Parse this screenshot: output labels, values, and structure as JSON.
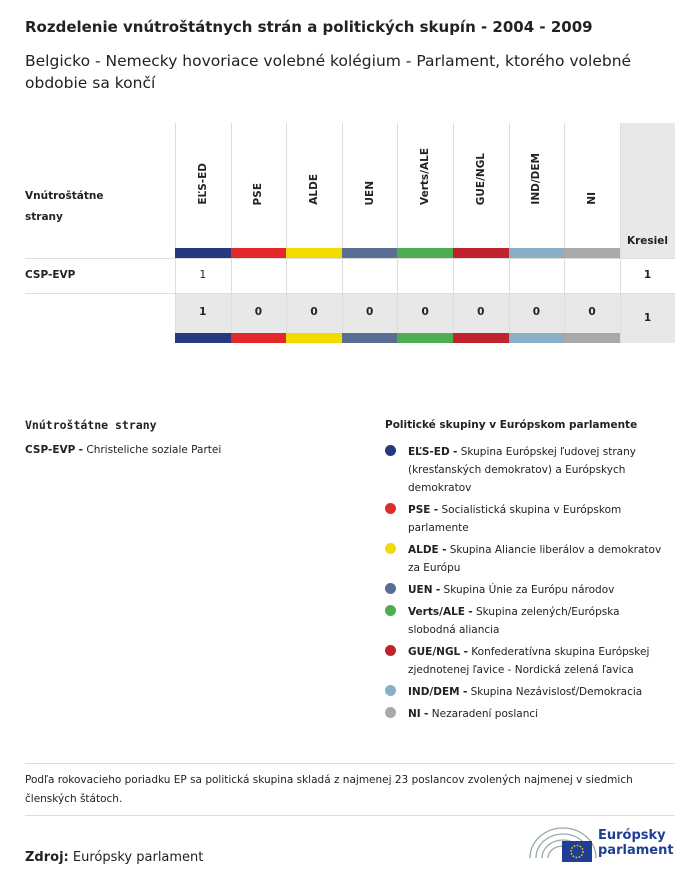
{
  "header": {
    "title": "Rozdelenie vnútroštátnych strán a politických skupín - 2004 - 2009",
    "subtitle": "Belgicko - Nemecky hovoriace volebné kolégium - Parlament, ktorého volebné obdobie sa končí"
  },
  "table": {
    "row_header": "Vnútroštátne strany",
    "seats_header": "Kresiel",
    "groups": [
      {
        "label": "EĽS-ED",
        "color": "#26387f"
      },
      {
        "label": "PSE",
        "color": "#e2282b"
      },
      {
        "label": "ALDE",
        "color": "#f0dc00"
      },
      {
        "label": "UEN",
        "color": "#5a6d94"
      },
      {
        "label": "Verts/ALE",
        "color": "#4cae4f"
      },
      {
        "label": "GUE/NGL",
        "color": "#c0232b"
      },
      {
        "label": "IND/DEM",
        "color": "#89aec7"
      },
      {
        "label": "NI",
        "color": "#a9a9a9"
      }
    ],
    "rows": [
      {
        "party": "CSP-EVP",
        "cells": [
          1,
          null,
          null,
          null,
          null,
          null,
          null,
          null
        ],
        "total": 1
      }
    ],
    "totals": [
      1,
      0,
      0,
      0,
      0,
      0,
      0,
      0
    ],
    "total_seats": 1
  },
  "legend": {
    "parties_title": "Vnútroštátne strany",
    "parties": [
      {
        "abbr": "CSP-EVP",
        "name": "Christeliche soziale Partei"
      }
    ],
    "separator": "-",
    "groups_title": "Politické skupiny v Európskom parlamente",
    "groups": [
      "Skupina Európskej ľudovej strany (kresťanských demokratov) a Európskych demokratov",
      "Socialistická skupina v Európskom parlamente",
      "Skupina Aliancie liberálov a demokratov za Európu",
      "Skupina Únie za Európu národov",
      "Skupina zelených/Európska slobodná aliancia",
      "Konfederatívna skupina Európskej zjednotenej ľavice - Nordická zelená ľavica",
      "Skupina Nezávislosť/Demokracia",
      "Nezaradení poslanci"
    ]
  },
  "note": "Podľa rokovacieho poriadku EP sa politická skupina skladá z najmenej 23 poslancov zvolených najmenej v siedmich členských štátoch.",
  "footer": {
    "source_label": "Zdroj:",
    "source": "Európsky parlament",
    "logo_text": "Európsky parlament"
  }
}
